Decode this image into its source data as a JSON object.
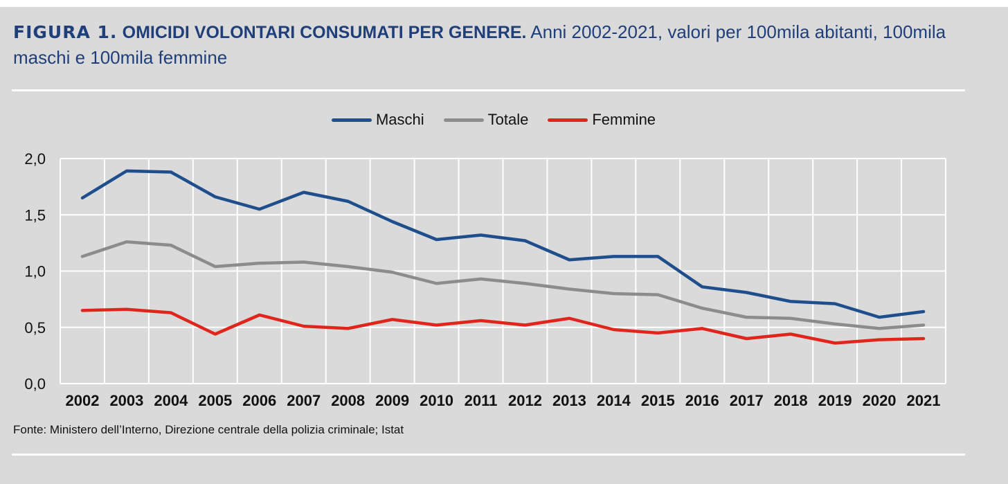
{
  "header": {
    "figure_label": "FIGURA 1.",
    "heading": "OMICIDI VOLONTARI CONSUMATI PER GENERE.",
    "subtitle": "Anni 2002-2021, valori per 100mila abitanti, 100mila maschi e 100mila femmine"
  },
  "legend": {
    "items": [
      {
        "label": "Maschi",
        "color": "#1f4e8c"
      },
      {
        "label": "Totale",
        "color": "#8c8c8c"
      },
      {
        "label": "Femmine",
        "color": "#e0261c"
      }
    ]
  },
  "source": "Fonte: Ministero dell’Interno, Direzione centrale della polizia criminale; Istat",
  "chart_data": {
    "type": "line",
    "x": [
      "2002",
      "2003",
      "2004",
      "2005",
      "2006",
      "2007",
      "2008",
      "2009",
      "2010",
      "2011",
      "2012",
      "2013",
      "2014",
      "2015",
      "2016",
      "2017",
      "2018",
      "2019",
      "2020",
      "2021"
    ],
    "ylim": [
      0,
      2
    ],
    "yticks": [
      "0,0",
      "0,5",
      "1,0",
      "1,5",
      "2,0"
    ],
    "ytick_values": [
      0,
      0.5,
      1.0,
      1.5,
      2.0
    ],
    "grid": true,
    "legend_position": "top-center",
    "series": [
      {
        "name": "Maschi",
        "color": "#1f4e8c",
        "values": [
          1.65,
          1.89,
          1.88,
          1.66,
          1.55,
          1.7,
          1.62,
          1.44,
          1.28,
          1.32,
          1.27,
          1.1,
          1.13,
          1.13,
          0.86,
          0.81,
          0.73,
          0.71,
          0.59,
          0.64
        ]
      },
      {
        "name": "Totale",
        "color": "#8c8c8c",
        "values": [
          1.13,
          1.26,
          1.23,
          1.04,
          1.07,
          1.08,
          1.04,
          0.99,
          0.89,
          0.93,
          0.89,
          0.84,
          0.8,
          0.79,
          0.67,
          0.59,
          0.58,
          0.53,
          0.49,
          0.52
        ]
      },
      {
        "name": "Femmine",
        "color": "#e0261c",
        "values": [
          0.65,
          0.66,
          0.63,
          0.44,
          0.61,
          0.51,
          0.49,
          0.57,
          0.52,
          0.56,
          0.52,
          0.58,
          0.48,
          0.45,
          0.49,
          0.4,
          0.44,
          0.36,
          0.39,
          0.4
        ]
      }
    ]
  }
}
